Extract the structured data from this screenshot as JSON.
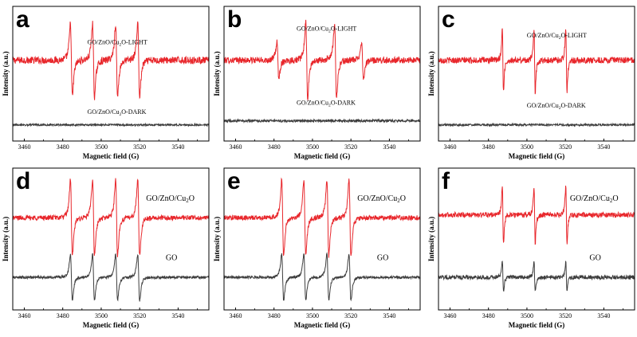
{
  "chart_data": [
    {
      "type": "line",
      "panel": "a",
      "xlabel": "Magnetic field (G)",
      "ylabel": "Intensity (a.u.)",
      "xlim": [
        3454,
        3556
      ],
      "xticks": [
        3460,
        3480,
        3500,
        3520,
        3540
      ],
      "series": [
        {
          "name": "GO/ZnO/Cu2O-LIGHT",
          "color": "#e8262b",
          "pattern": "quartet",
          "lines": [
            3484.5,
            3496,
            3508,
            3519.5
          ],
          "amp": 1.0,
          "noise": 0.06
        },
        {
          "name": "GO/ZnO/Cu2O-DARK",
          "color": "#3d3d3d",
          "pattern": "noise",
          "lines": [],
          "amp": 0,
          "noise": 0.07
        }
      ]
    },
    {
      "type": "line",
      "panel": "b",
      "xlabel": "Magnetic field (G)",
      "ylabel": "Intensity (a.u.)",
      "xlim": [
        3454,
        3556
      ],
      "xticks": [
        3460,
        3480,
        3500,
        3520,
        3540
      ],
      "series": [
        {
          "name": "GO/ZnO/Cu2O-LIGHT",
          "color": "#e8262b",
          "pattern": "quartet",
          "lines": [
            3482,
            3497,
            3512,
            3526
          ],
          "amp": [
            0.45,
            0.95,
            0.95,
            0.45
          ],
          "noise": 0.05
        },
        {
          "name": "GO/ZnO/Cu2O-DARK",
          "color": "#3d3d3d",
          "pattern": "noise",
          "lines": [],
          "amp": 0,
          "noise": 0.1
        }
      ]
    },
    {
      "type": "line",
      "panel": "c",
      "xlabel": "Magnetic field (G)",
      "ylabel": "Intensity (a.u.)",
      "xlim": [
        3454,
        3556
      ],
      "xticks": [
        3460,
        3480,
        3500,
        3520,
        3540
      ],
      "series": [
        {
          "name": "GO/ZnO/Cu2O-LIGHT",
          "color": "#e8262b",
          "pattern": "triplet",
          "lines": [
            3487.5,
            3504,
            3520.5
          ],
          "amp": 1.0,
          "noise": 0.06
        },
        {
          "name": "GO/ZnO/Cu2O-DARK",
          "color": "#3d3d3d",
          "pattern": "noise",
          "lines": [],
          "amp": 0,
          "noise": 0.08
        }
      ]
    },
    {
      "type": "line",
      "panel": "d",
      "xlabel": "Magnetic field (G)",
      "ylabel": "Intensity (a.u.)",
      "xlim": [
        3454,
        3556
      ],
      "xticks": [
        3460,
        3480,
        3500,
        3520,
        3540
      ],
      "series": [
        {
          "name": "GO/ZnO/Cu2O",
          "color": "#e8262b",
          "pattern": "quartet",
          "lines": [
            3484.5,
            3496,
            3508,
            3519.5
          ],
          "amp": 1.0,
          "noise": 0.04
        },
        {
          "name": "GO",
          "color": "#3d3d3d",
          "pattern": "quartet",
          "lines": [
            3484.5,
            3496,
            3508,
            3519.5
          ],
          "amp": 0.85,
          "noise": 0.03
        }
      ]
    },
    {
      "type": "line",
      "panel": "e",
      "xlabel": "Magnetic field (G)",
      "ylabel": "Intensity (a.u.)",
      "xlim": [
        3454,
        3556
      ],
      "xticks": [
        3460,
        3480,
        3500,
        3520,
        3540
      ],
      "series": [
        {
          "name": "GO/ZnO/Cu2O",
          "color": "#e8262b",
          "pattern": "quartet",
          "lines": [
            3484.5,
            3496,
            3508,
            3519.5
          ],
          "amp": 1.0,
          "noise": 0.04
        },
        {
          "name": "GO",
          "color": "#3d3d3d",
          "pattern": "quartet",
          "lines": [
            3484.5,
            3496,
            3508,
            3519.5
          ],
          "amp": 0.85,
          "noise": 0.03
        }
      ]
    },
    {
      "type": "line",
      "panel": "f",
      "xlabel": "Magnetic field (G)",
      "ylabel": "Intensity (a.u.)",
      "xlim": [
        3454,
        3556
      ],
      "xticks": [
        3460,
        3480,
        3500,
        3520,
        3540
      ],
      "series": [
        {
          "name": "GO/ZnO/Cu2O",
          "color": "#e8262b",
          "pattern": "triplet",
          "lines": [
            3487.5,
            3504,
            3520.5
          ],
          "amp": 0.9,
          "noise": 0.05
        },
        {
          "name": "GO",
          "color": "#3d3d3d",
          "pattern": "triplet",
          "lines": [
            3487.5,
            3504,
            3520.5
          ],
          "amp": 0.6,
          "noise": 0.05
        }
      ]
    }
  ]
}
